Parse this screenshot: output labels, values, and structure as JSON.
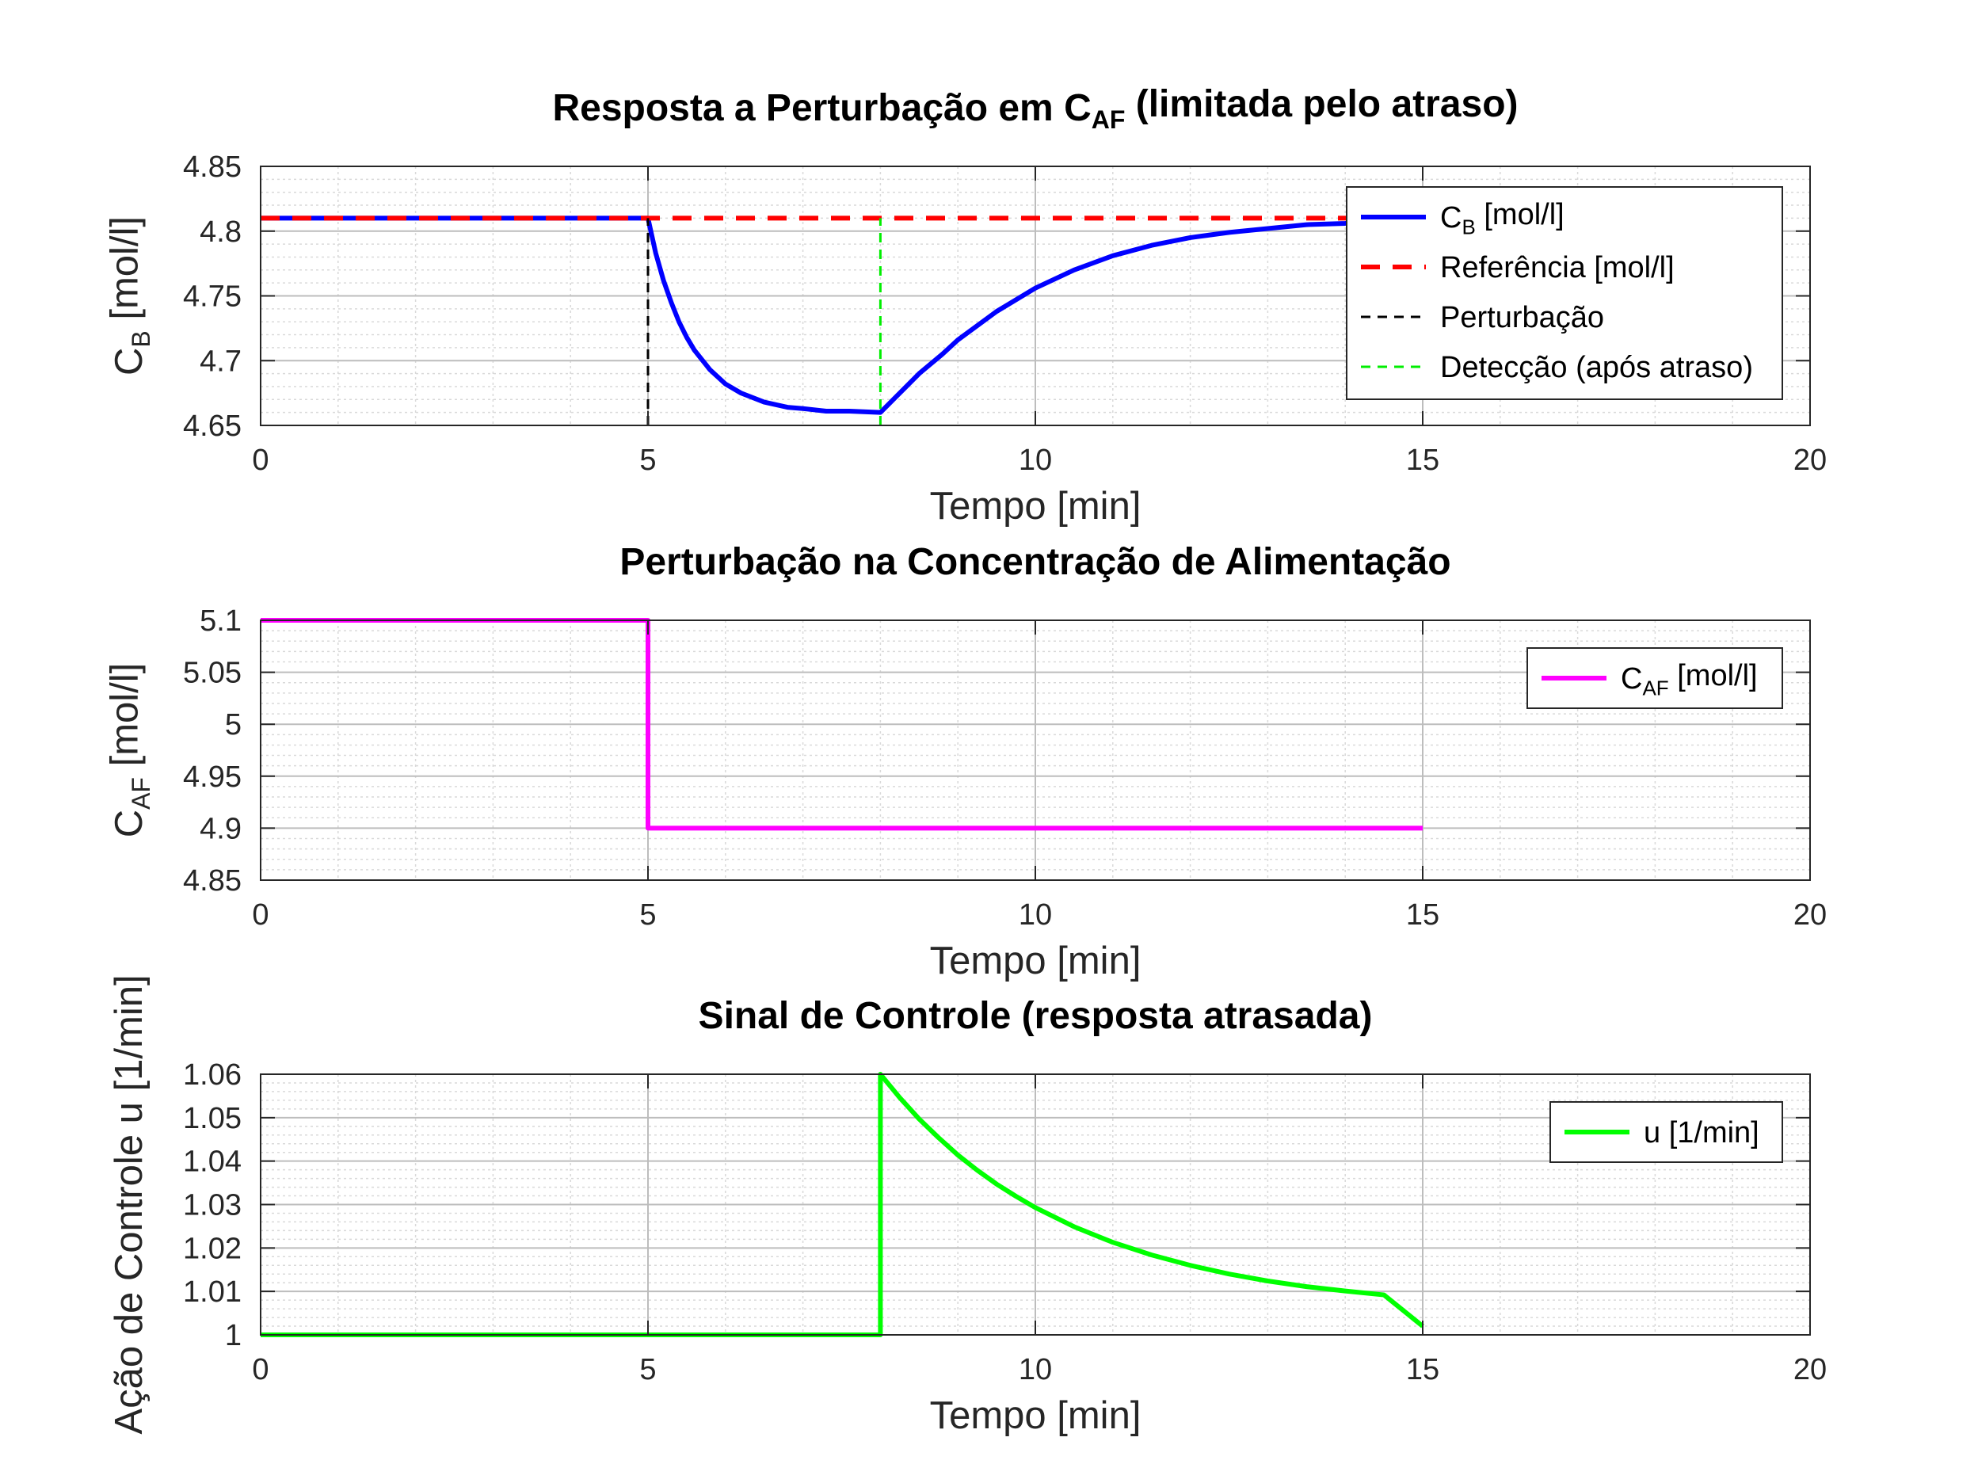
{
  "colors": {
    "cb": "#0000ff",
    "ref": "#ff0000",
    "disturbance": "#000000",
    "detection": "#00ee00",
    "caf": "#ff00ff",
    "u": "#00ff00"
  },
  "chart_data": [
    {
      "type": "line",
      "title": {
        "main": "Resposta a Perturbação em C",
        "sub": "AF",
        "rest": " (limitada pelo atraso)"
      },
      "xlabel": "Tempo [min]",
      "ylabel": {
        "main": "C",
        "sub": "B",
        "rest": " [mol/l]"
      },
      "xlim": [
        0,
        20
      ],
      "ylim": [
        4.65,
        4.85
      ],
      "xticks": [
        0,
        5,
        10,
        15,
        20
      ],
      "yticks": [
        4.65,
        4.7,
        4.75,
        4.8,
        4.85
      ],
      "yticklabels": [
        "4.65",
        "4.7",
        "4.75",
        "4.8",
        "4.85"
      ],
      "grid": true,
      "minor_grid": true,
      "legend_position": "top-right",
      "series": [
        {
          "name": {
            "main": "C",
            "sub": "B",
            "rest": " [mol/l]"
          },
          "style": "solid",
          "color_key": "cb",
          "x": [
            0,
            5,
            5.1,
            5.2,
            5.3,
            5.4,
            5.5,
            5.6,
            5.8,
            6.0,
            6.2,
            6.5,
            6.8,
            7.0,
            7.3,
            7.6,
            8.0,
            8.1,
            8.3,
            8.5,
            8.8,
            9.0,
            9.5,
            10,
            10.5,
            11,
            11.5,
            12,
            12.5,
            13,
            13.5,
            14,
            14.5,
            15
          ],
          "y": [
            4.81,
            4.81,
            4.783,
            4.762,
            4.745,
            4.73,
            4.718,
            4.708,
            4.693,
            4.682,
            4.675,
            4.668,
            4.664,
            4.663,
            4.661,
            4.661,
            4.66,
            4.666,
            4.678,
            4.69,
            4.705,
            4.716,
            4.738,
            4.756,
            4.77,
            4.781,
            4.789,
            4.795,
            4.799,
            4.802,
            4.805,
            4.806,
            4.808,
            4.809
          ]
        },
        {
          "name": {
            "main": "Referência [mol/l]",
            "sub": "",
            "rest": ""
          },
          "style": "dashed",
          "color_key": "ref",
          "x": [
            0,
            15
          ],
          "y": [
            4.81,
            4.81
          ]
        },
        {
          "name": {
            "main": "Perturbação",
            "sub": "",
            "rest": ""
          },
          "style": "dashed-thin",
          "color_key": "disturbance",
          "x": [
            5,
            5
          ],
          "y": [
            4.65,
            4.81
          ]
        },
        {
          "name": {
            "main": "Detecção (após atraso)",
            "sub": "",
            "rest": ""
          },
          "style": "dashed-thin",
          "color_key": "detection",
          "x": [
            8,
            8
          ],
          "y": [
            4.65,
            4.81
          ]
        }
      ]
    },
    {
      "type": "line",
      "title": {
        "main": "Perturbação na Concentração de Alimentação",
        "sub": "",
        "rest": ""
      },
      "xlabel": "Tempo [min]",
      "ylabel": {
        "main": "C",
        "sub": "AF",
        "rest": " [mol/l]"
      },
      "xlim": [
        0,
        20
      ],
      "ylim": [
        4.85,
        5.1
      ],
      "xticks": [
        0,
        5,
        10,
        15,
        20
      ],
      "yticks": [
        4.85,
        4.9,
        4.95,
        5.0,
        5.05,
        5.1
      ],
      "yticklabels": [
        "4.85",
        "4.9",
        "4.95",
        "5",
        "5.05",
        "5.1"
      ],
      "grid": true,
      "minor_grid": true,
      "legend_position": "top-right",
      "series": [
        {
          "name": {
            "main": "C",
            "sub": "AF",
            "rest": " [mol/l]"
          },
          "style": "solid",
          "color_key": "caf",
          "x": [
            0,
            5,
            5,
            15
          ],
          "y": [
            5.1,
            5.1,
            4.9,
            4.9
          ]
        }
      ]
    },
    {
      "type": "line",
      "title": {
        "main": "Sinal de Controle (resposta atrasada)",
        "sub": "",
        "rest": ""
      },
      "xlabel": "Tempo [min]",
      "ylabel": {
        "main": "Ação de Controle u [1/min]",
        "sub": "",
        "rest": ""
      },
      "xlim": [
        0,
        20
      ],
      "ylim": [
        1.0,
        1.06
      ],
      "xticks": [
        0,
        5,
        10,
        15,
        20
      ],
      "yticks": [
        1.0,
        1.01,
        1.02,
        1.03,
        1.04,
        1.05,
        1.06
      ],
      "yticklabels": [
        "1",
        "1.01",
        "1.02",
        "1.03",
        "1.04",
        "1.05",
        "1.06"
      ],
      "grid": true,
      "minor_grid": true,
      "legend_position": "top-right",
      "series": [
        {
          "name": {
            "main": "u [1/min]",
            "sub": "",
            "rest": ""
          },
          "style": "solid",
          "color_key": "u",
          "x": [
            0,
            8,
            8,
            8.25,
            8.5,
            8.75,
            9,
            9.25,
            9.5,
            9.75,
            10,
            10.5,
            11,
            11.5,
            12,
            12.5,
            13,
            13.5,
            14,
            14.5,
            15
          ],
          "y": [
            1.0,
            1.0,
            1.06,
            1.0546,
            1.0497,
            1.0454,
            1.0414,
            1.0379,
            1.0347,
            1.0319,
            1.0293,
            1.0249,
            1.0213,
            1.0184,
            1.016,
            1.014,
            1.0124,
            1.0111,
            1.0101,
            1.0092,
            1.002
          ]
        }
      ]
    }
  ]
}
